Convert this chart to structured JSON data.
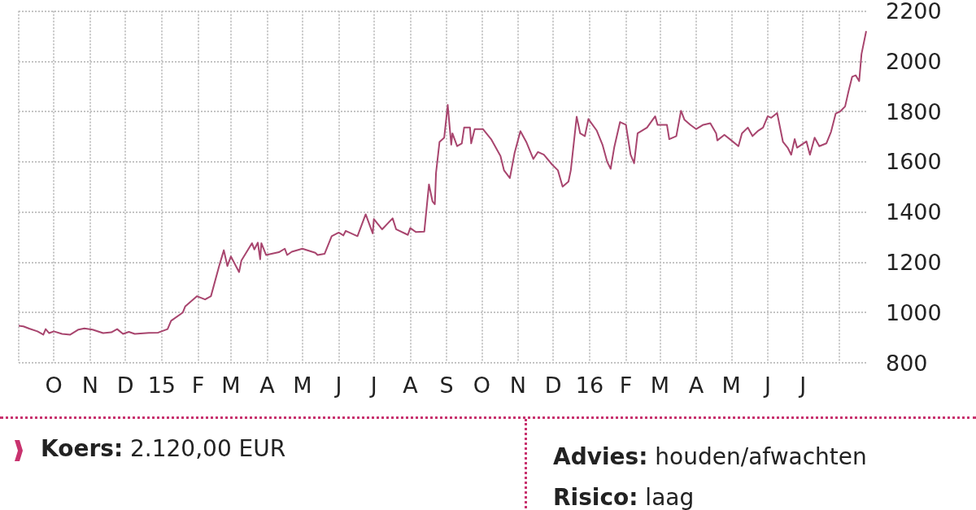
{
  "chart_data": {
    "type": "line",
    "color": "#a8456e",
    "grid": true,
    "marker": "none",
    "line_style": "solid",
    "x": [
      "2014-09-01",
      "2014-09-05",
      "2014-09-10",
      "2014-09-17",
      "2014-09-22",
      "2014-09-24",
      "2014-09-27",
      "2014-10-01",
      "2014-10-08",
      "2014-10-15",
      "2014-10-22",
      "2014-10-27",
      "2014-11-03",
      "2014-11-12",
      "2014-11-19",
      "2014-11-24",
      "2014-11-29",
      "2014-12-04",
      "2014-12-09",
      "2014-12-21",
      "2014-12-29",
      "2015-01-06",
      "2015-01-09",
      "2015-01-19",
      "2015-01-21",
      "2015-01-31",
      "2015-02-07",
      "2015-02-12",
      "2015-02-19",
      "2015-02-23",
      "2015-02-26",
      "2015-03-01",
      "2015-03-08",
      "2015-03-10",
      "2015-03-19",
      "2015-03-21",
      "2015-03-24",
      "2015-03-26",
      "2015-03-27",
      "2015-03-31",
      "2015-04-11",
      "2015-04-16",
      "2015-04-18",
      "2015-04-22",
      "2015-05-01",
      "2015-05-12",
      "2015-05-14",
      "2015-05-20",
      "2015-05-26",
      "2015-06-01",
      "2015-06-05",
      "2015-06-07",
      "2015-06-17",
      "2015-06-24",
      "2015-06-30",
      "2015-07-01",
      "2015-07-08",
      "2015-07-17",
      "2015-07-20",
      "2015-07-30",
      "2015-08-01",
      "2015-08-06",
      "2015-08-13",
      "2015-08-17",
      "2015-08-20",
      "2015-08-22",
      "2015-08-23",
      "2015-08-26",
      "2015-08-30",
      "2015-09-02",
      "2015-09-05",
      "2015-09-06",
      "2015-09-10",
      "2015-09-14",
      "2015-09-16",
      "2015-09-21",
      "2015-09-22",
      "2015-09-25",
      "2015-10-02",
      "2015-10-09",
      "2015-10-17",
      "2015-10-20",
      "2015-10-25",
      "2015-10-29",
      "2015-11-03",
      "2015-11-08",
      "2015-11-14",
      "2015-11-18",
      "2015-11-23",
      "2015-11-30",
      "2015-12-05",
      "2015-12-09",
      "2015-12-14",
      "2015-12-16",
      "2015-12-21",
      "2015-12-24",
      "2015-12-28",
      "2015-12-31",
      "2016-01-07",
      "2016-01-12",
      "2016-01-16",
      "2016-01-19",
      "2016-01-22",
      "2016-01-27",
      "2016-02-01",
      "2016-02-05",
      "2016-02-08",
      "2016-02-11",
      "2016-02-19",
      "2016-02-26",
      "2016-02-28",
      "2016-03-07",
      "2016-03-09",
      "2016-03-15",
      "2016-03-19",
      "2016-03-22",
      "2016-03-27",
      "2016-04-01",
      "2016-04-07",
      "2016-04-13",
      "2016-04-18",
      "2016-04-19",
      "2016-04-25",
      "2016-05-01",
      "2016-05-07",
      "2016-05-10",
      "2016-05-15",
      "2016-05-19",
      "2016-05-24",
      "2016-05-28",
      "2016-06-01",
      "2016-06-04",
      "2016-06-09",
      "2016-06-14",
      "2016-06-18",
      "2016-06-21",
      "2016-06-24",
      "2016-06-26",
      "2016-07-04",
      "2016-07-07",
      "2016-07-11",
      "2016-07-15",
      "2016-07-21",
      "2016-07-25",
      "2016-07-29",
      "2016-08-02",
      "2016-08-06",
      "2016-08-09",
      "2016-08-12",
      "2016-08-15",
      "2016-08-18",
      "2016-08-20",
      "2016-08-24"
    ],
    "values": [
      947,
      945,
      936,
      925,
      912,
      934,
      918,
      925,
      915,
      912,
      932,
      937,
      932,
      918,
      921,
      934,
      915,
      923,
      915,
      919,
      920,
      934,
      967,
      1000,
      1024,
      1065,
      1052,
      1065,
      1185,
      1248,
      1185,
      1223,
      1161,
      1207,
      1276,
      1251,
      1278,
      1212,
      1276,
      1229,
      1240,
      1254,
      1229,
      1242,
      1254,
      1238,
      1229,
      1234,
      1304,
      1318,
      1307,
      1325,
      1304,
      1391,
      1315,
      1372,
      1331,
      1375,
      1331,
      1309,
      1336,
      1320,
      1322,
      1510,
      1442,
      1431,
      1555,
      1679,
      1696,
      1826,
      1668,
      1713,
      1662,
      1673,
      1736,
      1736,
      1673,
      1730,
      1730,
      1690,
      1623,
      1566,
      1535,
      1634,
      1722,
      1679,
      1611,
      1639,
      1628,
      1589,
      1566,
      1501,
      1521,
      1566,
      1779,
      1713,
      1702,
      1770,
      1725,
      1668,
      1600,
      1572,
      1656,
      1758,
      1747,
      1628,
      1594,
      1713,
      1736,
      1781,
      1747,
      1747,
      1690,
      1702,
      1803,
      1767,
      1747,
      1730,
      1747,
      1753,
      1713,
      1685,
      1707,
      1685,
      1662,
      1713,
      1736,
      1702,
      1724,
      1736,
      1781,
      1775,
      1794,
      1679,
      1656,
      1628,
      1690,
      1656,
      1681,
      1628,
      1696,
      1662,
      1673,
      1719,
      1792,
      1801,
      1820,
      1882,
      1938,
      1944,
      1921,
      2029,
      2120
    ],
    "xlim": [
      "2014-09-01",
      "2016-08-24"
    ],
    "xticks": [
      {
        "value": "2014-09-01",
        "label": null
      },
      {
        "value": "2014-10-01",
        "label": "O"
      },
      {
        "value": "2014-11-01",
        "label": "N"
      },
      {
        "value": "2014-12-01",
        "label": "D"
      },
      {
        "value": "2015-01-01",
        "label": "15"
      },
      {
        "value": "2015-02-01",
        "label": "F"
      },
      {
        "value": "2015-03-01",
        "label": "M"
      },
      {
        "value": "2015-04-01",
        "label": "A"
      },
      {
        "value": "2015-05-01",
        "label": "M"
      },
      {
        "value": "2015-06-01",
        "label": "J"
      },
      {
        "value": "2015-07-01",
        "label": "J"
      },
      {
        "value": "2015-08-01",
        "label": "A"
      },
      {
        "value": "2015-09-01",
        "label": "S"
      },
      {
        "value": "2015-10-01",
        "label": "O"
      },
      {
        "value": "2015-11-01",
        "label": "N"
      },
      {
        "value": "2015-12-01",
        "label": "D"
      },
      {
        "value": "2016-01-01",
        "label": "16"
      },
      {
        "value": "2016-02-01",
        "label": "F"
      },
      {
        "value": "2016-03-01",
        "label": "M"
      },
      {
        "value": "2016-04-01",
        "label": "A"
      },
      {
        "value": "2016-05-01",
        "label": "M"
      },
      {
        "value": "2016-06-01",
        "label": "J"
      },
      {
        "value": "2016-07-01",
        "label": "J"
      },
      {
        "value": "2016-08-01",
        "label": null
      }
    ],
    "ylim": [
      800,
      2200
    ],
    "yticks": [
      800,
      1000,
      1200,
      1400,
      1600,
      1800,
      2000,
      2200
    ],
    "annotations": [
      "Koers: 2.120,00 EUR",
      "Advies: houden/afwachten",
      "Risico: laag"
    ]
  }
}
